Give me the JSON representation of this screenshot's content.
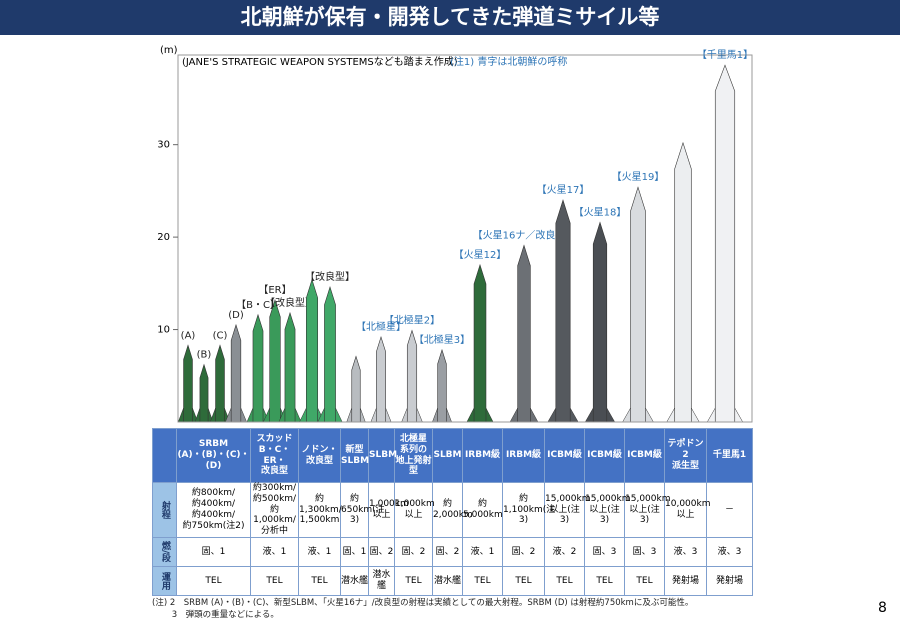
{
  "title": "北朝鮮が保有・開発してきた弾道ミサイル等",
  "chart": {
    "unit": "(m)",
    "source": "(JANE'S STRATEGIC WEAPON SYSTEMSなども踏まえ作成)",
    "note": "(注1) 青字は北朝鮮の呼称",
    "ylim": [
      0,
      39.7
    ],
    "yticks": [
      10,
      20,
      30
    ],
    "missiles": [
      {
        "label": "(A)",
        "height": 8.3,
        "color": "#2e6b3a",
        "label_color": "#222222"
      },
      {
        "label": "(B)",
        "height": 6.2,
        "color": "#2e6b3a",
        "label_color": "#222222"
      },
      {
        "label": "(C)",
        "height": 8.3,
        "color": "#2e6b3a",
        "label_color": "#222222"
      },
      {
        "label": "(D)",
        "height": 10.5,
        "color": "#8a8f94",
        "label_color": "#222222"
      },
      {
        "label": "【B・C】",
        "height": 11.6,
        "color": "#3a9a5a",
        "label_color": "#222222"
      },
      {
        "label": "【ER】",
        "height": 13.2,
        "color": "#3a9a5a",
        "label_color": "#222222"
      },
      {
        "label": "【改良型】",
        "height": 11.8,
        "color": "#3a9a5a",
        "label_color": "#222222"
      },
      {
        "label": null,
        "height": 15.4,
        "color": "#40a868",
        "label_color": "#222222"
      },
      {
        "label": "【改良型】",
        "height": 14.6,
        "color": "#40a868",
        "label_color": "#222222"
      },
      {
        "label": null,
        "height": 7.1,
        "color": "#b8bcc0",
        "label_color": "#2e75b6"
      },
      {
        "label": "【北極星】",
        "height": 9.2,
        "color": "#c9ccd0",
        "label_color": "#2e75b6"
      },
      {
        "label": "【北極星2】",
        "height": 9.9,
        "color": "#c9ccd0",
        "label_color": "#2e75b6"
      },
      {
        "label": "【北極星3】",
        "height": 7.8,
        "color": "#9a9ea3",
        "label_color": "#2e75b6"
      },
      {
        "label": "【火星12】",
        "height": 17.0,
        "color": "#2e6b3a",
        "label_color": "#2e75b6"
      },
      {
        "label": "【火星16ナ／改良型】",
        "height": 19.1,
        "color": "#6c7075",
        "label_color": "#2e75b6"
      },
      {
        "label": "【火星17】",
        "height": 24.0,
        "color": "#55595e",
        "label_color": "#2e75b6"
      },
      {
        "label": "【火星18】",
        "height": 21.6,
        "color": "#4a4e53",
        "label_color": "#2e75b6"
      },
      {
        "label": "【火星19】",
        "height": 25.4,
        "color": "#d9dcdf",
        "label_color": "#2e75b6"
      },
      {
        "label": null,
        "height": 30.2,
        "color": "#eceef0",
        "label_color": "#2e75b6"
      },
      {
        "label": "【千里馬1】",
        "height": 38.6,
        "color": "#f0f1f3",
        "label_color": "#2e75b6"
      }
    ]
  },
  "table": {
    "header": [
      "SRBM\n(A)・(B)・(C)・\n(D)",
      "スカッド\nB・C・\nER・\n改良型",
      "ノドン・\n改良型",
      "新型\nSLBM",
      "SLBM",
      "北極星\n系列の\n地上発射型",
      "SLBM",
      "IRBM級",
      "IRBM級",
      "ICBM級",
      "ICBM級",
      "ICBM級",
      "テポドン2\n派生型",
      "千里馬1"
    ],
    "rows": [
      {
        "label": "射程",
        "cells": [
          "約800km/\n約400km/\n約400km/\n約750km(注2)",
          "約300km/\n約500km/\n約1,000km/\n分析中",
          "約\n1,300km/\n1,500km",
          "約650km(注3)",
          "1,000km\n以上",
          "1,000km\n以上",
          "約2,000km",
          "約5,000km",
          "約1,100km(注3)",
          "15,000km\n以上(注3)",
          "15,000km\n以上(注3)",
          "15,000km\n以上(注3)",
          "10,000km\n以上",
          "－"
        ]
      },
      {
        "label": "燃/段",
        "cells": [
          "固、1",
          "液、1",
          "液、1",
          "固、1",
          "固、2",
          "固、2",
          "固、2",
          "液、1",
          "固、2",
          "液、2",
          "固、3",
          "固、3",
          "液、3",
          "液、3"
        ]
      },
      {
        "label": "運用",
        "cells": [
          "TEL",
          "TEL",
          "TEL",
          "潜水艦",
          "潜水艦",
          "TEL",
          "潜水艦",
          "TEL",
          "TEL",
          "TEL",
          "TEL",
          "TEL",
          "発射場",
          "発射場"
        ]
      }
    ]
  },
  "notes": [
    "(注) 2　SRBM (A)・(B)・(C)、新型SLBM、「火星16ナ」/改良型の射程は実績としての最大射程。SRBM (D) は射程約750kmに及ぶ可能性。",
    "　　 3　弾頭の重量などによる。"
  ],
  "page_number": "8"
}
